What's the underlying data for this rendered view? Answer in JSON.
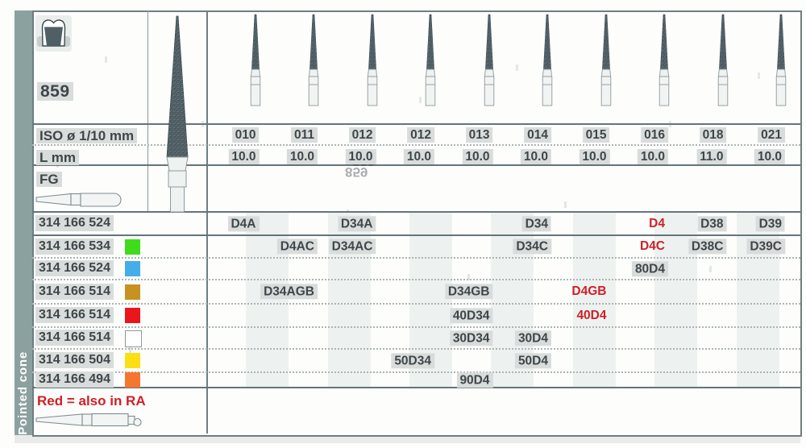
{
  "product": {
    "number": "859",
    "name": "Pointed cone",
    "ghost_number": "859"
  },
  "labels": {
    "iso": "ISO ø 1/10 mm",
    "l": "L mm",
    "shank": "FG"
  },
  "columns": [
    {
      "iso": "010",
      "l": "10.0"
    },
    {
      "iso": "011",
      "l": "10.0"
    },
    {
      "iso": "012",
      "l": "10.0"
    },
    {
      "iso": "012",
      "l": "10.0"
    },
    {
      "iso": "013",
      "l": "10.0"
    },
    {
      "iso": "014",
      "l": "10.0"
    },
    {
      "iso": "015",
      "l": "10.0"
    },
    {
      "iso": "016",
      "l": "10.0"
    },
    {
      "iso": "018",
      "l": "11.0"
    },
    {
      "iso": "021",
      "l": "10.0"
    }
  ],
  "rows": [
    {
      "code": "314 166 524",
      "swatch": null,
      "cells": [
        {
          "col": 0,
          "text": "D4A",
          "red": false
        },
        {
          "col": 2,
          "text": "D34A",
          "red": false
        },
        {
          "col": 5,
          "text": "D34",
          "red": false
        },
        {
          "col": 7,
          "text": "D4",
          "red": true
        },
        {
          "col": 8,
          "text": "D38",
          "red": false
        },
        {
          "col": 9,
          "text": "D39",
          "red": false
        }
      ]
    },
    {
      "code": "314 166 534",
      "swatch": "#3edc1b",
      "cells": [
        {
          "col": 1,
          "text": "D4AC",
          "red": false
        },
        {
          "col": 2,
          "text": "D34AC",
          "red": false
        },
        {
          "col": 5,
          "text": "D34C",
          "red": false
        },
        {
          "col": 7,
          "text": "D4C",
          "red": true
        },
        {
          "col": 8,
          "text": "D38C",
          "red": false
        },
        {
          "col": 9,
          "text": "D39C",
          "red": false
        }
      ]
    },
    {
      "code": "314 166 524",
      "swatch": "#45ade8",
      "cells": [
        {
          "col": 7,
          "text": "80D4",
          "red": false
        }
      ]
    },
    {
      "code": "314 166 514",
      "swatch": "#c89220",
      "cells": [
        {
          "col": 1,
          "text": "D34AGB",
          "red": false
        },
        {
          "col": 4,
          "text": "D34GB",
          "red": false
        },
        {
          "col": 6,
          "text": "D4GB",
          "red": true
        }
      ]
    },
    {
      "code": "314 166 514",
      "swatch": "#ea161b",
      "cells": [
        {
          "col": 4,
          "text": "40D34",
          "red": false
        },
        {
          "col": 6,
          "text": "40D4",
          "red": true
        }
      ]
    },
    {
      "code": "314 166 514",
      "swatch": "#ffffff",
      "cells": [
        {
          "col": 4,
          "text": "30D34",
          "red": false
        },
        {
          "col": 5,
          "text": "30D4",
          "red": false
        }
      ]
    },
    {
      "code": "314 166 504",
      "swatch": "#fbdf12",
      "cells": [
        {
          "col": 3,
          "text": "50D34",
          "red": false
        },
        {
          "col": 5,
          "text": "50D4",
          "red": false
        }
      ]
    },
    {
      "code": "314 166 494",
      "swatch": "#f5762e",
      "cells": [
        {
          "col": 4,
          "text": "90D4",
          "red": false
        }
      ]
    }
  ],
  "footer": {
    "note": "Red = also in RA"
  },
  "colors": {
    "accent_red": "#cf2026",
    "sidebar": "#8ba19f",
    "stripe": "#edf2f0",
    "text_highlight": "#d8dddb",
    "line_dark": "#64757a",
    "bur_dark": "#4b5a60",
    "swatch_green": "#3edc1b",
    "swatch_blue": "#45ade8",
    "swatch_ochre": "#c89220",
    "swatch_red": "#ea161b",
    "swatch_white": "#ffffff",
    "swatch_yellow": "#fbdf12",
    "swatch_orange": "#f5762e"
  }
}
